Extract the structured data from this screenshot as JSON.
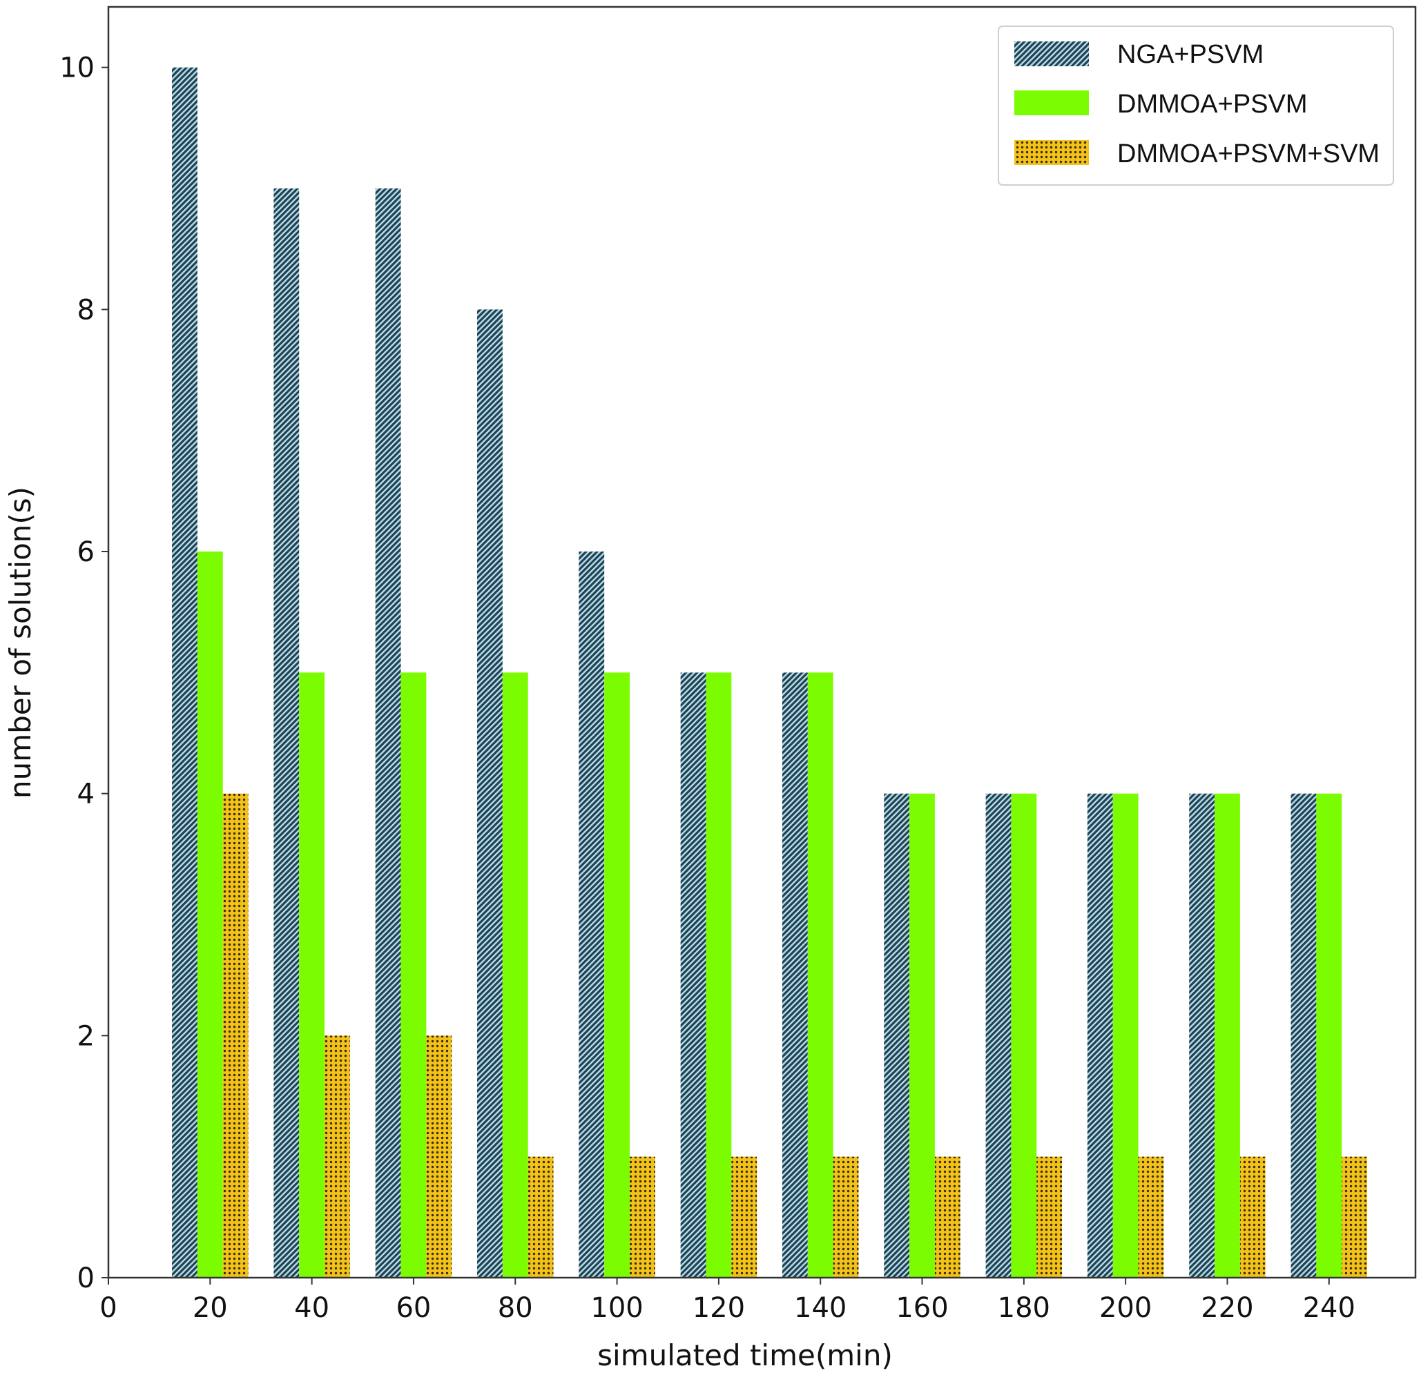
{
  "chart_data": {
    "type": "bar",
    "x": [
      20,
      40,
      60,
      80,
      100,
      120,
      140,
      160,
      180,
      200,
      220,
      240
    ],
    "series": [
      {
        "name": "NGA+PSVM",
        "values": [
          10,
          9,
          9,
          8,
          6,
          5,
          5,
          4,
          4,
          4,
          4,
          4
        ],
        "color": "#2f5f73",
        "pattern": "diagonal-hatch"
      },
      {
        "name": "DMMOA+PSVM",
        "values": [
          6,
          5,
          5,
          5,
          5,
          5,
          5,
          4,
          4,
          4,
          4,
          4
        ],
        "color": "#7cfc00",
        "pattern": "solid"
      },
      {
        "name": "DMMOA+PSVM+SVM",
        "values": [
          4,
          2,
          2,
          1,
          1,
          1,
          1,
          1,
          1,
          1,
          1,
          1
        ],
        "color": "#f2c21b",
        "pattern": "dotted"
      }
    ],
    "xlabel": "simulated time(min)",
    "ylabel": "number of solution(s)",
    "xticks": [
      0,
      20,
      40,
      60,
      80,
      100,
      120,
      140,
      160,
      180,
      200,
      220,
      240
    ],
    "yticks": [
      0,
      2,
      4,
      6,
      8,
      10
    ],
    "xlim": [
      0,
      257
    ],
    "ylim": [
      0,
      10.5
    ],
    "grid": false,
    "legend_position": "top-right"
  }
}
